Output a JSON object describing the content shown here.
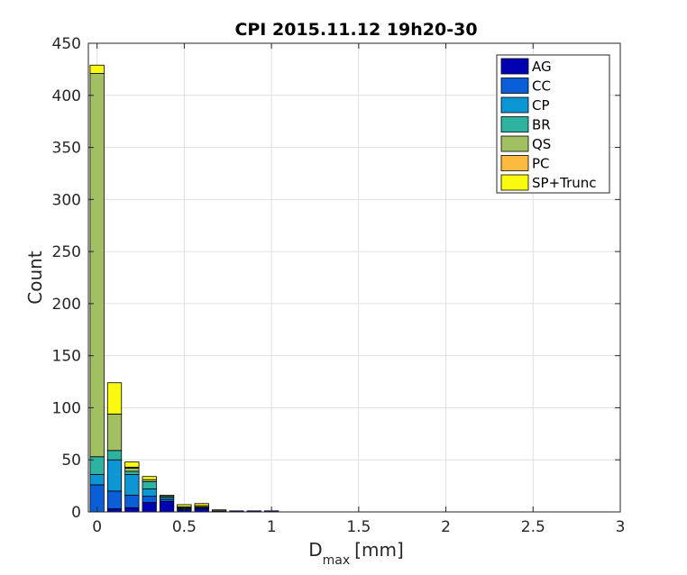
{
  "chart_data": {
    "type": "bar",
    "stacked": true,
    "title": "CPI 2015.11.12 19h20-30",
    "xlabel_main": "D",
    "xlabel_sub": "max",
    "xlabel_unit": "[mm]",
    "ylabel": "Count",
    "xlim": [
      -0.05,
      3
    ],
    "ylim": [
      0,
      450
    ],
    "xticks": [
      0,
      0.5,
      1,
      1.5,
      2,
      2.5,
      3
    ],
    "xtick_labels": [
      "0",
      "0.5",
      "1",
      "1.5",
      "2",
      "2.5",
      "3"
    ],
    "yticks": [
      0,
      50,
      100,
      150,
      200,
      250,
      300,
      350,
      400,
      450
    ],
    "ytick_labels": [
      "0",
      "50",
      "100",
      "150",
      "200",
      "250",
      "300",
      "350",
      "400",
      "450"
    ],
    "grid": true,
    "legend_position": "top-right",
    "bar_width": 0.08,
    "x": [
      0,
      0.1,
      0.2,
      0.3,
      0.4,
      0.5,
      0.6,
      0.7,
      0.8,
      0.9,
      1.0
    ],
    "series": [
      {
        "name": "AG",
        "color": "#0000b3",
        "values": [
          0,
          3,
          4,
          9,
          10,
          2,
          3,
          1,
          1,
          1,
          1
        ]
      },
      {
        "name": "CC",
        "color": "#0a5fd9",
        "values": [
          26,
          17,
          12,
          6,
          2,
          1,
          1,
          0,
          0,
          0,
          0
        ]
      },
      {
        "name": "CP",
        "color": "#0d96d4",
        "values": [
          10,
          30,
          20,
          7,
          2,
          1,
          0,
          0,
          0,
          0,
          0
        ]
      },
      {
        "name": "BR",
        "color": "#2db3a0",
        "values": [
          17,
          9,
          3,
          7,
          1,
          1,
          0,
          0,
          0,
          0,
          0
        ]
      },
      {
        "name": "QS",
        "color": "#a2bf61",
        "values": [
          368,
          35,
          3,
          2,
          0,
          0,
          1,
          1,
          0,
          0,
          0
        ]
      },
      {
        "name": "PC",
        "color": "#fcbb3e",
        "values": [
          0,
          0,
          1,
          0,
          0,
          0,
          1,
          0,
          0,
          0,
          0
        ]
      },
      {
        "name": "SP+Trunc",
        "color": "#fafa0f",
        "values": [
          8,
          30,
          5,
          3,
          1,
          2,
          2,
          0,
          0,
          0,
          0
        ]
      }
    ]
  }
}
